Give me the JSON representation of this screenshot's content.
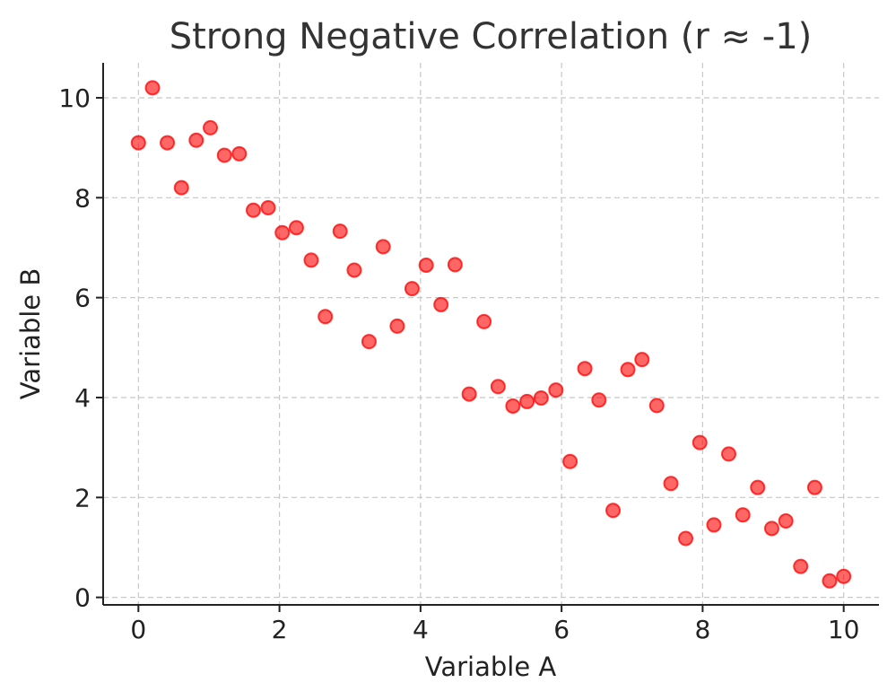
{
  "chart_data": {
    "type": "scatter",
    "title": "Strong Negative Correlation (r ≈ -1)",
    "xlabel": "Variable A",
    "ylabel": "Variable B",
    "xlim": [
      -0.5,
      10.5
    ],
    "ylim": [
      -0.15,
      10.7
    ],
    "xticks": [
      0,
      2,
      4,
      6,
      8,
      10
    ],
    "yticks": [
      0,
      2,
      4,
      6,
      8,
      10
    ],
    "grid": true,
    "colors": {
      "point": "#ff0000"
    },
    "points": [
      {
        "x": 0.0,
        "y": 9.1
      },
      {
        "x": 0.2,
        "y": 10.2
      },
      {
        "x": 0.41,
        "y": 9.1
      },
      {
        "x": 0.61,
        "y": 8.2
      },
      {
        "x": 0.82,
        "y": 9.15
      },
      {
        "x": 1.02,
        "y": 9.4
      },
      {
        "x": 1.22,
        "y": 8.85
      },
      {
        "x": 1.43,
        "y": 8.88
      },
      {
        "x": 1.63,
        "y": 7.75
      },
      {
        "x": 1.84,
        "y": 7.8
      },
      {
        "x": 2.04,
        "y": 7.3
      },
      {
        "x": 2.24,
        "y": 7.4
      },
      {
        "x": 2.45,
        "y": 6.75
      },
      {
        "x": 2.65,
        "y": 5.62
      },
      {
        "x": 2.86,
        "y": 7.33
      },
      {
        "x": 3.06,
        "y": 6.55
      },
      {
        "x": 3.27,
        "y": 5.12
      },
      {
        "x": 3.47,
        "y": 7.02
      },
      {
        "x": 3.67,
        "y": 5.43
      },
      {
        "x": 3.88,
        "y": 6.18
      },
      {
        "x": 4.08,
        "y": 6.65
      },
      {
        "x": 4.29,
        "y": 5.86
      },
      {
        "x": 4.49,
        "y": 6.66
      },
      {
        "x": 4.69,
        "y": 4.07
      },
      {
        "x": 4.9,
        "y": 5.52
      },
      {
        "x": 5.1,
        "y": 4.22
      },
      {
        "x": 5.31,
        "y": 3.83
      },
      {
        "x": 5.51,
        "y": 3.92
      },
      {
        "x": 5.71,
        "y": 3.99
      },
      {
        "x": 5.92,
        "y": 4.15
      },
      {
        "x": 6.12,
        "y": 2.72
      },
      {
        "x": 6.33,
        "y": 4.58
      },
      {
        "x": 6.53,
        "y": 3.95
      },
      {
        "x": 6.73,
        "y": 1.74
      },
      {
        "x": 6.94,
        "y": 4.56
      },
      {
        "x": 7.14,
        "y": 4.76
      },
      {
        "x": 7.35,
        "y": 3.84
      },
      {
        "x": 7.55,
        "y": 2.28
      },
      {
        "x": 7.76,
        "y": 1.18
      },
      {
        "x": 7.96,
        "y": 3.1
      },
      {
        "x": 8.16,
        "y": 1.45
      },
      {
        "x": 8.37,
        "y": 2.87
      },
      {
        "x": 8.57,
        "y": 1.65
      },
      {
        "x": 8.78,
        "y": 2.2
      },
      {
        "x": 8.98,
        "y": 1.38
      },
      {
        "x": 9.18,
        "y": 1.53
      },
      {
        "x": 9.39,
        "y": 0.62
      },
      {
        "x": 9.59,
        "y": 2.2
      },
      {
        "x": 9.8,
        "y": 0.33
      },
      {
        "x": 10.0,
        "y": 0.42
      }
    ]
  }
}
